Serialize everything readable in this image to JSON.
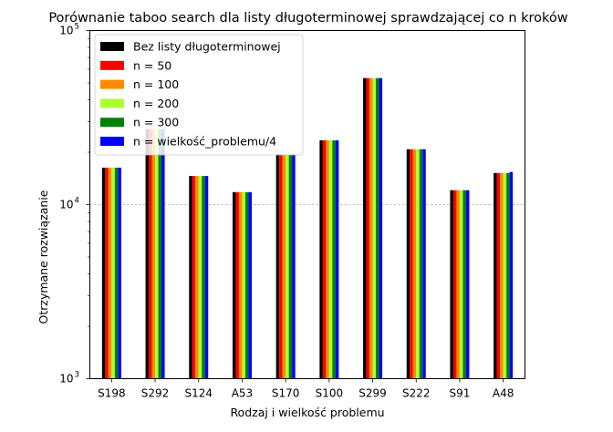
{
  "chart_data": {
    "type": "bar",
    "title": "Porównanie taboo search dla listy długoterminowej sprawdzającej co n kroków",
    "xlabel": "Rodzaj i wielkość problemu",
    "ylabel": "Otrzymane rozwiązanie",
    "yscale": "log",
    "ylim": [
      1000,
      100000
    ],
    "ytick_labels": [
      {
        "value": 1000,
        "base": "10",
        "exp": "3"
      },
      {
        "value": 10000,
        "base": "10",
        "exp": "4"
      },
      {
        "value": 100000,
        "base": "10",
        "exp": "5"
      }
    ],
    "grid": "horizontal dashed at 10^4",
    "legend_position": "top-left",
    "categories": [
      "S198",
      "S292",
      "S124",
      "A53",
      "S170",
      "S100",
      "S299",
      "S222",
      "S91",
      "A48"
    ],
    "series": [
      {
        "name": "Bez listy długoterminowej",
        "color": "#000000",
        "values": [
          16300,
          27200,
          14600,
          11800,
          19500,
          23400,
          53300,
          20800,
          12100,
          15200
        ]
      },
      {
        "name": "n = 50",
        "color": "#ff0000",
        "values": [
          16300,
          27200,
          14600,
          11800,
          19500,
          23400,
          53300,
          20800,
          12100,
          15200
        ]
      },
      {
        "name": "n = 100",
        "color": "#ff8c00",
        "values": [
          16300,
          27200,
          14600,
          11800,
          19500,
          23400,
          53300,
          20800,
          12100,
          15200
        ]
      },
      {
        "name": "n = 200",
        "color": "#adff2f",
        "values": [
          16300,
          27200,
          14600,
          11800,
          19500,
          23400,
          53300,
          20800,
          12100,
          15200
        ]
      },
      {
        "name": "n = 300",
        "color": "#008000",
        "values": [
          16300,
          27200,
          14600,
          11800,
          19500,
          23400,
          53300,
          20800,
          12100,
          15200
        ]
      },
      {
        "name": "n = wielkość_problemu/4",
        "color": "#0000ff",
        "values": [
          16300,
          27200,
          14600,
          11800,
          19500,
          23400,
          53300,
          20800,
          12100,
          15400
        ]
      }
    ]
  }
}
